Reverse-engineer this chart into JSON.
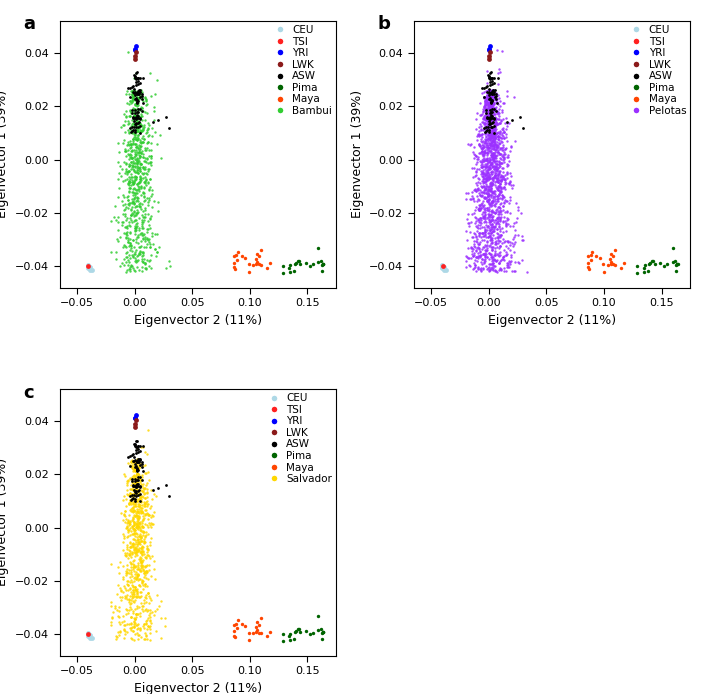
{
  "xlabel": "Eigenvector 2 (11%)",
  "ylabel": "Eigenvector 1 (39%)",
  "xlim": [
    -0.065,
    0.175
  ],
  "ylim": [
    -0.048,
    0.052
  ],
  "xticks": [
    -0.05,
    0.0,
    0.05,
    0.1,
    0.15
  ],
  "yticks": [
    -0.04,
    -0.02,
    0.0,
    0.02,
    0.04
  ],
  "panel_labels": [
    "a",
    "b",
    "c"
  ],
  "groups": {
    "CEU": {
      "color": "#ADD8E6",
      "size": 12
    },
    "TSI": {
      "color": "#FF2020",
      "size": 12
    },
    "YRI": {
      "color": "#0000FF",
      "size": 12
    },
    "LWK": {
      "color": "#8B1A1A",
      "size": 12
    },
    "ASW": {
      "color": "#000000",
      "size": 4
    },
    "Pima": {
      "color": "#006400",
      "size": 4
    },
    "Maya": {
      "color": "#FF4500",
      "size": 4
    }
  },
  "panel_a_special": {
    "name": "Bambui",
    "color": "#32CD32"
  },
  "panel_b_special": {
    "name": "Pelotas",
    "color": "#9B30FF"
  },
  "panel_c_special": {
    "name": "Salvador",
    "color": "#FFD700"
  },
  "seed": 42
}
